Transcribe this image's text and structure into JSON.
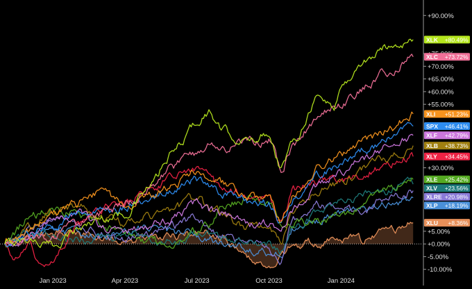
{
  "chart_data": {
    "type": "line",
    "title": "",
    "xlabel": "",
    "ylabel": "",
    "ylim": [
      -12,
      95
    ],
    "y_ticks": [
      {
        "value": 90,
        "label": "+90.00%"
      },
      {
        "value": 75,
        "label": "+75.00%"
      },
      {
        "value": 70,
        "label": "+70.00%"
      },
      {
        "value": 65,
        "label": "+65.00%"
      },
      {
        "value": 60,
        "label": "+60.00%"
      },
      {
        "value": 55,
        "label": "+55.00%"
      },
      {
        "value": 30,
        "label": "+30.00%"
      },
      {
        "value": 5,
        "label": "+5.00%"
      },
      {
        "value": 0,
        "label": "+0.00%"
      },
      {
        "value": -5,
        "label": "-5.00%"
      },
      {
        "value": -10,
        "label": "-10.00%"
      }
    ],
    "x_ticks": [
      {
        "month": 2,
        "label": "Jan 2023"
      },
      {
        "month": 5,
        "label": "Apr 2023"
      },
      {
        "month": 8,
        "label": "Jul 2023"
      },
      {
        "month": 11,
        "label": "Oct 2023"
      },
      {
        "month": 14,
        "label": "Jan 2024"
      }
    ],
    "x_range_months": [
      -0.2,
      17.4
    ],
    "legend_position": "right",
    "series": [
      {
        "name": "XLK",
        "label": "+80.49%",
        "color": "#b5e61d",
        "text_color": "#ffffff",
        "knots": [
          [
            0,
            0
          ],
          [
            1,
            2
          ],
          [
            2,
            -1
          ],
          [
            3,
            6
          ],
          [
            4,
            10
          ],
          [
            5,
            12
          ],
          [
            6,
            22
          ],
          [
            7,
            36
          ],
          [
            8,
            48
          ],
          [
            8.5,
            52
          ],
          [
            9,
            45
          ],
          [
            10,
            40
          ],
          [
            11,
            44
          ],
          [
            11.5,
            30
          ],
          [
            12,
            40
          ],
          [
            13,
            58
          ],
          [
            13.7,
            54
          ],
          [
            14,
            62
          ],
          [
            15,
            72
          ],
          [
            16,
            78
          ],
          [
            17,
            80.49
          ]
        ]
      },
      {
        "name": "XLC",
        "label": "+73.72%",
        "color": "#f07098",
        "text_color": "#ffffff",
        "knots": [
          [
            0,
            0
          ],
          [
            1,
            3
          ],
          [
            2,
            2
          ],
          [
            3,
            8
          ],
          [
            4,
            12
          ],
          [
            5,
            15
          ],
          [
            6,
            22
          ],
          [
            7,
            30
          ],
          [
            8,
            36
          ],
          [
            8.5,
            40
          ],
          [
            9,
            37
          ],
          [
            10,
            40
          ],
          [
            11,
            41
          ],
          [
            11.5,
            30
          ],
          [
            12,
            38
          ],
          [
            13,
            50
          ],
          [
            14,
            55
          ],
          [
            15,
            62
          ],
          [
            16,
            68
          ],
          [
            17,
            73.72
          ]
        ]
      },
      {
        "name": "XLI",
        "label": "+51.23%",
        "color": "#f7931e",
        "text_color": "#ffffff",
        "knots": [
          [
            0,
            0
          ],
          [
            1,
            5
          ],
          [
            2,
            12
          ],
          [
            3,
            16
          ],
          [
            4,
            20
          ],
          [
            5,
            15
          ],
          [
            6,
            19
          ],
          [
            7,
            23
          ],
          [
            8,
            29
          ],
          [
            8.5,
            27
          ],
          [
            9,
            24
          ],
          [
            10,
            18
          ],
          [
            11,
            18
          ],
          [
            11.5,
            8
          ],
          [
            12,
            19
          ],
          [
            13,
            30
          ],
          [
            14,
            35
          ],
          [
            15,
            40
          ],
          [
            16,
            45
          ],
          [
            17,
            51.23
          ]
        ]
      },
      {
        "name": "SPX",
        "label": "+46.41%",
        "color": "#2d8cf0",
        "text_color": "#ffffff",
        "knots": [
          [
            0,
            0
          ],
          [
            1,
            4
          ],
          [
            2,
            8
          ],
          [
            3,
            12
          ],
          [
            4,
            13
          ],
          [
            5,
            14
          ],
          [
            6,
            18
          ],
          [
            7,
            22
          ],
          [
            8,
            25
          ],
          [
            8.5,
            22
          ],
          [
            9,
            20
          ],
          [
            10,
            17
          ],
          [
            11,
            16
          ],
          [
            11.5,
            9
          ],
          [
            12,
            18
          ],
          [
            13,
            27
          ],
          [
            14,
            32
          ],
          [
            15,
            37
          ],
          [
            16,
            42
          ],
          [
            17,
            46.41
          ]
        ]
      },
      {
        "name": "XLF",
        "label": "+42.79%",
        "color": "#cc77dd",
        "text_color": "#ffffff",
        "knots": [
          [
            0,
            0
          ],
          [
            1,
            3
          ],
          [
            2,
            9
          ],
          [
            3,
            13
          ],
          [
            4,
            6
          ],
          [
            5,
            5
          ],
          [
            6,
            8
          ],
          [
            7,
            10
          ],
          [
            8,
            16
          ],
          [
            8.5,
            13
          ],
          [
            9,
            12
          ],
          [
            10,
            8
          ],
          [
            11,
            8
          ],
          [
            11.5,
            4
          ],
          [
            12,
            14
          ],
          [
            13,
            23
          ],
          [
            14,
            28
          ],
          [
            15,
            34
          ],
          [
            16,
            38
          ],
          [
            17,
            42.79
          ]
        ]
      },
      {
        "name": "XLB",
        "label": "+38.73%",
        "color": "#a08010",
        "text_color": "#ffffff",
        "knots": [
          [
            0,
            0
          ],
          [
            1,
            6
          ],
          [
            2,
            13
          ],
          [
            3,
            15
          ],
          [
            4,
            10
          ],
          [
            5,
            8
          ],
          [
            6,
            11
          ],
          [
            7,
            13
          ],
          [
            8,
            18
          ],
          [
            8.5,
            14
          ],
          [
            9,
            12
          ],
          [
            10,
            7
          ],
          [
            11,
            6
          ],
          [
            11.5,
            2
          ],
          [
            12,
            13
          ],
          [
            13,
            22
          ],
          [
            14,
            24
          ],
          [
            15,
            30
          ],
          [
            16,
            34
          ],
          [
            17,
            38.73
          ]
        ]
      },
      {
        "name": "XLY",
        "label": "+34.45%",
        "color": "#ee2244",
        "text_color": "#ffffff",
        "knots": [
          [
            0,
            0
          ],
          [
            0.5,
            -6
          ],
          [
            1,
            0
          ],
          [
            1.5,
            -10
          ],
          [
            2,
            -5
          ],
          [
            3,
            7
          ],
          [
            4,
            14
          ],
          [
            5,
            16
          ],
          [
            6,
            22
          ],
          [
            7,
            26
          ],
          [
            8,
            30
          ],
          [
            8.5,
            26
          ],
          [
            9,
            22
          ],
          [
            10,
            19
          ],
          [
            11,
            17
          ],
          [
            11.5,
            8
          ],
          [
            12,
            20
          ],
          [
            13,
            25
          ],
          [
            14,
            24
          ],
          [
            15,
            28
          ],
          [
            16,
            31
          ],
          [
            17,
            34.45
          ]
        ]
      },
      {
        "name": "XLE",
        "label": "+25.42%",
        "color": "#55aa22",
        "text_color": "#ffffff",
        "knots": [
          [
            0,
            0
          ],
          [
            1,
            10
          ],
          [
            2,
            14
          ],
          [
            3,
            12
          ],
          [
            4,
            8
          ],
          [
            5,
            3
          ],
          [
            6,
            1
          ],
          [
            7,
            0
          ],
          [
            8,
            5
          ],
          [
            8.5,
            8
          ],
          [
            9,
            15
          ],
          [
            10,
            18
          ],
          [
            11,
            16
          ],
          [
            11.5,
            8
          ],
          [
            12,
            8
          ],
          [
            13,
            9
          ],
          [
            14,
            10
          ],
          [
            15,
            17
          ],
          [
            16,
            21
          ],
          [
            17,
            25.42
          ]
        ]
      },
      {
        "name": "XLV",
        "label": "+23.56%",
        "color": "#1d7a7a",
        "text_color": "#ffffff",
        "knots": [
          [
            0,
            0
          ],
          [
            1,
            5
          ],
          [
            2,
            3
          ],
          [
            3,
            1
          ],
          [
            4,
            2
          ],
          [
            5,
            4
          ],
          [
            6,
            2
          ],
          [
            7,
            1
          ],
          [
            8,
            4
          ],
          [
            8.5,
            3
          ],
          [
            9,
            2
          ],
          [
            10,
            1
          ],
          [
            11,
            0
          ],
          [
            11.5,
            -3
          ],
          [
            12,
            5
          ],
          [
            13,
            12
          ],
          [
            14,
            16
          ],
          [
            15,
            19
          ],
          [
            16,
            21
          ],
          [
            17,
            23.56
          ]
        ]
      },
      {
        "name": "XLRE",
        "label": "+20.98%",
        "color": "#8a7ad8",
        "text_color": "#ffffff",
        "knots": [
          [
            0,
            0
          ],
          [
            1,
            6
          ],
          [
            2,
            10
          ],
          [
            3,
            8
          ],
          [
            4,
            4
          ],
          [
            5,
            2
          ],
          [
            6,
            4
          ],
          [
            7,
            6
          ],
          [
            8,
            10
          ],
          [
            8.5,
            6
          ],
          [
            9,
            4
          ],
          [
            10,
            0
          ],
          [
            11,
            -2
          ],
          [
            11.5,
            -6
          ],
          [
            12,
            10
          ],
          [
            13,
            15
          ],
          [
            14,
            13
          ],
          [
            15,
            14
          ],
          [
            16,
            18
          ],
          [
            17,
            20.98
          ]
        ]
      },
      {
        "name": "XLP",
        "label": "+18.19%",
        "color": "#4a90d9",
        "text_color": "#ffffff",
        "knots": [
          [
            0,
            0
          ],
          [
            1,
            3
          ],
          [
            2,
            5
          ],
          [
            3,
            4
          ],
          [
            4,
            3
          ],
          [
            5,
            4
          ],
          [
            6,
            6
          ],
          [
            7,
            5
          ],
          [
            8,
            4
          ],
          [
            8.5,
            2
          ],
          [
            9,
            1
          ],
          [
            10,
            -2
          ],
          [
            11,
            -3
          ],
          [
            11.5,
            -5
          ],
          [
            12,
            6
          ],
          [
            13,
            9
          ],
          [
            14,
            11
          ],
          [
            15,
            13
          ],
          [
            16,
            16
          ],
          [
            17,
            18.19
          ]
        ]
      },
      {
        "name": "XLU",
        "label": "+8.36%",
        "color": "#e8905a",
        "text_color": "#ffffff",
        "fill": true,
        "knots": [
          [
            0,
            0
          ],
          [
            1,
            2
          ],
          [
            2,
            4
          ],
          [
            3,
            3
          ],
          [
            4,
            2
          ],
          [
            5,
            1
          ],
          [
            6,
            2
          ],
          [
            7,
            3
          ],
          [
            8,
            5
          ],
          [
            8.5,
            4
          ],
          [
            9,
            2
          ],
          [
            10,
            -4
          ],
          [
            10.5,
            -7
          ],
          [
            11,
            -11
          ],
          [
            11.5,
            -6
          ],
          [
            12,
            -1
          ],
          [
            13,
            1
          ],
          [
            14,
            2
          ],
          [
            15,
            1
          ],
          [
            16,
            5
          ],
          [
            17,
            8.36
          ]
        ]
      }
    ]
  }
}
